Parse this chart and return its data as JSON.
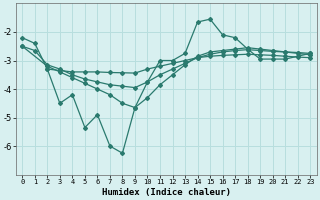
{
  "xlabel": "Humidex (Indice chaleur)",
  "ylabel": "",
  "background_color": "#d8f0f0",
  "grid_color": "#b8dede",
  "line_color": "#2a7a6e",
  "xlim": [
    -0.5,
    23.5
  ],
  "ylim": [
    -7.0,
    -1.0
  ],
  "yticks": [
    -6,
    -5,
    -4,
    -3,
    -2
  ],
  "xticks": [
    0,
    1,
    2,
    3,
    4,
    5,
    6,
    7,
    8,
    9,
    10,
    11,
    12,
    13,
    14,
    15,
    16,
    17,
    18,
    19,
    20,
    21,
    22,
    23
  ],
  "series": [
    {
      "x": [
        0,
        1,
        2,
        3,
        4,
        5,
        6,
        7,
        8,
        9,
        10,
        11,
        12,
        13,
        14,
        15,
        16,
        17,
        18,
        19,
        20,
        21,
        22,
        23
      ],
      "y": [
        -2.2,
        -2.4,
        -3.3,
        -4.5,
        -4.2,
        -5.35,
        -4.9,
        -6.0,
        -6.25,
        -4.65,
        -3.75,
        -3.0,
        -3.0,
        -2.75,
        -1.65,
        -1.55,
        -2.1,
        -2.2,
        -2.6,
        -2.95,
        -2.95,
        -2.95,
        -2.85,
        -2.75
      ]
    },
    {
      "x": [
        2,
        3,
        4,
        5,
        6,
        7,
        8,
        9,
        10,
        11,
        12,
        13,
        14,
        15,
        16,
        17,
        18,
        19,
        20,
        21,
        22,
        23
      ],
      "y": [
        -3.3,
        -3.35,
        -3.4,
        -3.4,
        -3.4,
        -3.42,
        -3.43,
        -3.44,
        -3.3,
        -3.2,
        -3.1,
        -3.0,
        -2.9,
        -2.85,
        -2.82,
        -2.8,
        -2.78,
        -2.8,
        -2.82,
        -2.85,
        -2.88,
        -2.9
      ]
    },
    {
      "x": [
        0,
        1,
        2,
        3,
        4,
        5,
        6,
        7,
        8,
        9,
        10,
        11,
        12,
        13,
        14,
        15,
        16,
        17,
        18,
        19,
        20,
        21,
        22,
        23
      ],
      "y": [
        -2.5,
        -2.65,
        -3.15,
        -3.3,
        -3.5,
        -3.65,
        -3.75,
        -3.85,
        -3.9,
        -3.95,
        -3.75,
        -3.5,
        -3.3,
        -3.1,
        -2.9,
        -2.78,
        -2.7,
        -2.65,
        -2.62,
        -2.65,
        -2.68,
        -2.7,
        -2.72,
        -2.75
      ]
    },
    {
      "x": [
        0,
        2,
        3,
        4,
        5,
        6,
        7,
        8,
        9,
        10,
        11,
        12,
        13,
        14,
        15,
        16,
        17,
        18,
        19,
        20,
        21,
        22,
        23
      ],
      "y": [
        -2.5,
        -3.2,
        -3.4,
        -3.6,
        -3.8,
        -4.0,
        -4.2,
        -4.5,
        -4.65,
        -4.3,
        -3.85,
        -3.5,
        -3.15,
        -2.85,
        -2.7,
        -2.65,
        -2.6,
        -2.55,
        -2.6,
        -2.65,
        -2.7,
        -2.75,
        -2.8
      ]
    }
  ]
}
